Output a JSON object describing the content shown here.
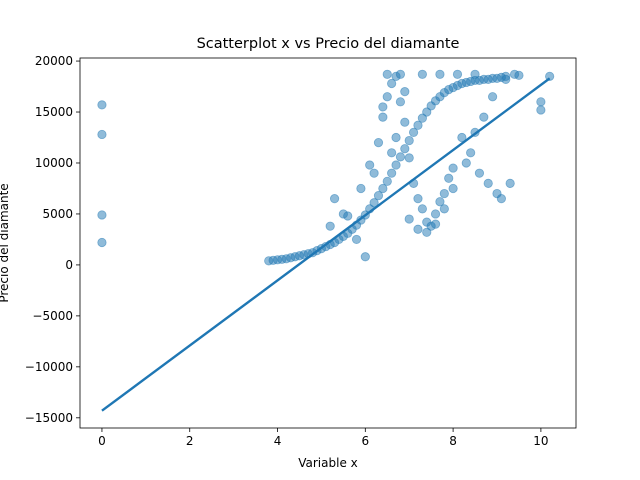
{
  "chart_data": {
    "type": "scatter",
    "title": "Scatterplot x vs Precio del diamante",
    "xlabel": "Variable x",
    "ylabel": "Precio del diamante",
    "xlim": [
      -0.5,
      10.8
    ],
    "ylim": [
      -16000,
      20300
    ],
    "xticks": [
      0,
      2,
      4,
      6,
      8,
      10
    ],
    "yticks": [
      -15000,
      -10000,
      -5000,
      0,
      5000,
      10000,
      15000,
      20000
    ],
    "grid": false,
    "legend": "none",
    "colors": {
      "points": "#1f77b4",
      "line": "#1f77b4"
    },
    "series": [
      {
        "kind": "points",
        "x": [
          0,
          0,
          0,
          0,
          3.8,
          3.9,
          4.0,
          4.1,
          4.2,
          4.3,
          4.4,
          4.5,
          4.6,
          4.7,
          4.8,
          4.9,
          5.0,
          5.1,
          5.2,
          5.3,
          5.4,
          5.5,
          5.6,
          5.7,
          5.8,
          5.9,
          6.0,
          6.1,
          6.2,
          6.3,
          6.4,
          6.5,
          6.6,
          6.7,
          6.8,
          6.9,
          7.0,
          7.1,
          7.2,
          7.3,
          7.4,
          7.5,
          7.6,
          7.7,
          7.8,
          7.9,
          8.0,
          8.1,
          8.2,
          8.3,
          8.4,
          8.5,
          8.6,
          8.7,
          8.8,
          8.9,
          9.0,
          9.1,
          9.2,
          9.5,
          10.0,
          10.0,
          10.2,
          5.3,
          5.5,
          5.8,
          6.0,
          6.2,
          6.3,
          6.4,
          6.5,
          6.6,
          6.6,
          6.7,
          6.8,
          6.9,
          7.0,
          7.1,
          7.2,
          7.3,
          7.4,
          7.5,
          7.6,
          7.7,
          7.8,
          7.9,
          8.0,
          8.2,
          8.4,
          8.6,
          8.8,
          9.0,
          9.1,
          9.3,
          5.2,
          5.6,
          5.9,
          6.1,
          6.4,
          6.7,
          6.9,
          7.0,
          7.2,
          7.4,
          7.6,
          7.8,
          8.0,
          8.3,
          8.5,
          8.7,
          8.9,
          9.2,
          6.5,
          6.8,
          7.3,
          7.7,
          8.1,
          8.5,
          9.4
        ],
        "y": [
          15700,
          12800,
          4900,
          2200,
          400,
          450,
          500,
          550,
          600,
          700,
          800,
          900,
          1000,
          1100,
          1200,
          1400,
          1600,
          1800,
          2000,
          2200,
          2500,
          2800,
          3100,
          3500,
          3900,
          4400,
          4900,
          5500,
          6100,
          6800,
          7500,
          8200,
          9000,
          9800,
          10600,
          11400,
          12200,
          13000,
          13700,
          14400,
          15000,
          15600,
          16100,
          16500,
          16900,
          17200,
          17400,
          17600,
          17800,
          17900,
          18000,
          18100,
          18100,
          18200,
          18200,
          18300,
          18300,
          18400,
          18500,
          18600,
          16000,
          15200,
          18500,
          6500,
          5000,
          2500,
          800,
          9000,
          12000,
          15500,
          16500,
          17800,
          11000,
          18500,
          16000,
          14000,
          10500,
          8000,
          6500,
          5500,
          4200,
          3800,
          5000,
          6200,
          7000,
          8500,
          9500,
          12500,
          11000,
          9000,
          8000,
          7000,
          6500,
          8000,
          3800,
          4800,
          7500,
          9800,
          14500,
          12500,
          17000,
          4500,
          3500,
          3200,
          4000,
          5500,
          7500,
          10000,
          13000,
          14500,
          16500,
          18200,
          18700,
          18700,
          18700,
          18700,
          18700,
          18700,
          18700
        ]
      },
      {
        "kind": "line",
        "x": [
          0,
          10.2
        ],
        "y": [
          -14300,
          18300
        ]
      }
    ]
  }
}
